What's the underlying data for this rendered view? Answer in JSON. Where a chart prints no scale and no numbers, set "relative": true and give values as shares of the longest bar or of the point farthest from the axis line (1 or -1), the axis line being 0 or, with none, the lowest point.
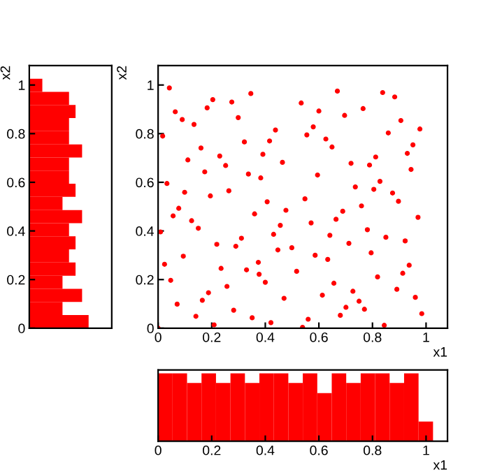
{
  "chart_data": [
    {
      "type": "bar",
      "orientation": "horizontal",
      "relative": true,
      "ylabel": "x2",
      "color": "#ff0000",
      "grid": false,
      "legend": false,
      "x": [
        0.027,
        0.081,
        0.135,
        0.189,
        0.243,
        0.297,
        0.351,
        0.405,
        0.459,
        0.513,
        0.567,
        0.621,
        0.675,
        0.729,
        0.783,
        0.837,
        0.891,
        0.945,
        0.999
      ],
      "values": [
        1,
        0.56,
        0.89,
        0.56,
        0.78,
        0.67,
        0.78,
        0.67,
        0.89,
        0.56,
        0.78,
        0.67,
        0.67,
        0.89,
        0.67,
        0.67,
        0.78,
        0.67,
        0.22
      ],
      "ylim": [
        0,
        1.08
      ],
      "yticks": [
        0,
        0.2,
        0.4,
        0.6,
        0.8,
        1
      ],
      "tick_labels": "y"
    },
    {
      "type": "scatter",
      "xlabel": "x1",
      "ylabel": "x2",
      "color": "#ff0000",
      "marker": "circle",
      "grid": false,
      "legend": false,
      "xlim": [
        0,
        1.08
      ],
      "ylim": [
        0,
        1.08
      ],
      "xticks": [
        0,
        0.2,
        0.4,
        0.6,
        0.8,
        1
      ],
      "yticks": [
        0,
        0.2,
        0.4,
        0.6,
        0.8,
        1
      ],
      "x": [
        0.042,
        0.017,
        0.064,
        0.09,
        0.134,
        0.183,
        0.204,
        0.275,
        0.299,
        0.346,
        0.111,
        0.16,
        0.23,
        0.252,
        0.322,
        0.391,
        0.416,
        0.438,
        0.464,
        0.174,
        0.383,
        0.337,
        0.264,
        0.195,
        0.033,
        0.099,
        0.077,
        0.056,
        0.125,
        0.15,
        0.36,
        0.407,
        0.456,
        0.477,
        0.009,
        0.219,
        0.311,
        0.29,
        0.431,
        0.447,
        0.499,
        0.33,
        0.374,
        0.235,
        0.377,
        0.4,
        0.517,
        0.024,
        0.047,
        0.094,
        0.257,
        0.188,
        0.165,
        0.071,
        0.141,
        0.209,
        0.282,
        0.351,
        0.421,
        0.47,
        0.539,
        0.56,
        0,
        0.534,
        0.6,
        0.669,
        0.696,
        0.765,
        0.838,
        0.883,
        0.579,
        0.555,
        0.626,
        0.649,
        0.906,
        0.977,
        0.859,
        0.951,
        0.93,
        0.944,
        0.812,
        0.789,
        0.72,
        0.595,
        0.736,
        0.805,
        0.828,
        0.875,
        0.897,
        0.548,
        0.689,
        0.664,
        0.759,
        0.97,
        0.571,
        0.641,
        0.712,
        0.781,
        0.85,
        0.922,
        0.586,
        0.633,
        0.795,
        0.937,
        0.913,
        0.819,
        0.656,
        0.891,
        0.727,
        0.613,
        0.75,
        0.96,
        0.701,
        0.77,
        0.68,
        0.984,
        0.844
      ],
      "values": [
        0.988,
        0.79,
        0.89,
        0.858,
        0.838,
        0.906,
        0.94,
        0.93,
        0.866,
        0.965,
        0.692,
        0.741,
        0.708,
        0.669,
        0.766,
        0.715,
        0.77,
        0.815,
        0.682,
        0.643,
        0.618,
        0.634,
        0.565,
        0.544,
        0.595,
        0.559,
        0.493,
        0.462,
        0.442,
        0.411,
        0.47,
        0.52,
        0.423,
        0.485,
        0.396,
        0.345,
        0.37,
        0.337,
        0.386,
        0.322,
        0.331,
        0.24,
        0.271,
        0.246,
        0.222,
        0.189,
        0.234,
        0.263,
        0.197,
        0.296,
        0.172,
        0.146,
        0.115,
        0.099,
        0.049,
        0.014,
        0.074,
        0.043,
        0.023,
        0.123,
        0.004,
        0.037,
        0,
        0.926,
        0.893,
        0.975,
        0.875,
        0.903,
        0.969,
        0.951,
        0.828,
        0.795,
        0.778,
        0.745,
        0.854,
        0.819,
        0.803,
        0.754,
        0.719,
        0.653,
        0.704,
        0.671,
        0.678,
        0.63,
        0.581,
        0.571,
        0.604,
        0.556,
        0.522,
        0.532,
        0.481,
        0.448,
        0.503,
        0.456,
        0.433,
        0.382,
        0.349,
        0.405,
        0.374,
        0.359,
        0.3,
        0.283,
        0.31,
        0.259,
        0.226,
        0.211,
        0.185,
        0.16,
        0.152,
        0.136,
        0.111,
        0.127,
        0.086,
        0.078,
        0.053,
        0.06,
        0.012
      ]
    },
    {
      "type": "bar",
      "relative": true,
      "xlabel": "x1",
      "color": "#ff0000",
      "grid": false,
      "legend": false,
      "x": [
        0.027,
        0.081,
        0.135,
        0.189,
        0.243,
        0.297,
        0.351,
        0.405,
        0.459,
        0.513,
        0.567,
        0.621,
        0.675,
        0.729,
        0.783,
        0.837,
        0.891,
        0.945,
        0.999
      ],
      "values": [
        1,
        1,
        0.86,
        1,
        0.86,
        1,
        0.86,
        1,
        1,
        0.86,
        1,
        0.71,
        1,
        0.86,
        1,
        1,
        0.86,
        1,
        0.29
      ],
      "xlim": [
        0,
        1.08
      ],
      "xticks": [
        0,
        0.2,
        0.4,
        0.6,
        0.8,
        1
      ],
      "tick_labels": "x"
    }
  ]
}
